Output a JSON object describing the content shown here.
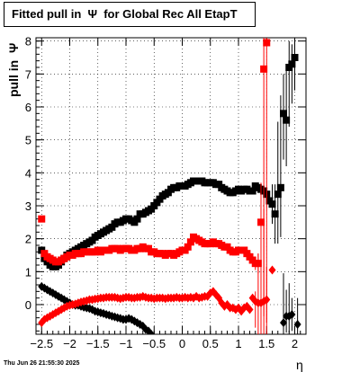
{
  "title": "Fitted pull in  Ψ  for Global Rec All EtapT",
  "footer": "Thu Jun 26 21:55:30 2025",
  "chart_data": {
    "type": "scatter",
    "title": "Fitted pull in  Ψ  for Global Rec All EtapT",
    "xlabel": "η",
    "ylabel": "pull in  Ψ",
    "xlim": [
      -2.6,
      2.2
    ],
    "ylim": [
      -0.9,
      8.1
    ],
    "xticks": [
      -2.5,
      -2,
      -1.5,
      -1,
      -0.5,
      0,
      0.5,
      1,
      1.5,
      2
    ],
    "xtick_labels": [
      "−2.5",
      "−2",
      "−1.5",
      "−1",
      "−0.5",
      "0",
      "0.5",
      "1",
      "1.5",
      "2"
    ],
    "yticks": [
      0,
      1,
      2,
      3,
      4,
      5,
      6,
      7,
      8
    ],
    "grid": true,
    "series": [
      {
        "marker": "square",
        "color": "#000000",
        "x": [
          -2.5,
          -2.45,
          -2.4,
          -2.35,
          -2.3,
          -2.25,
          -2.2,
          -2.15,
          -2.1,
          -2.05,
          -2.0,
          -1.95,
          -1.9,
          -1.85,
          -1.8,
          -1.75,
          -1.7,
          -1.65,
          -1.6,
          -1.55,
          -1.5,
          -1.45,
          -1.4,
          -1.35,
          -1.3,
          -1.25,
          -1.2,
          -1.15,
          -1.1,
          -1.05,
          -1.0,
          -0.95,
          -0.9,
          -0.85,
          -0.8,
          -0.75,
          -0.7,
          -0.65,
          -0.6,
          -0.55,
          -0.5,
          -0.45,
          -0.4,
          -0.35,
          -0.3,
          -0.25,
          -0.2,
          -0.15,
          -0.1,
          -0.05,
          0.0,
          0.05,
          0.1,
          0.15,
          0.2,
          0.25,
          0.3,
          0.35,
          0.4,
          0.45,
          0.5,
          0.55,
          0.6,
          0.65,
          0.7,
          0.75,
          0.8,
          0.85,
          0.9,
          0.95,
          1.0,
          1.05,
          1.1,
          1.15,
          1.2,
          1.25,
          1.3,
          1.35,
          1.4,
          1.45,
          1.5,
          1.55,
          1.6,
          1.65,
          1.7,
          1.75,
          1.8,
          1.85,
          1.9,
          1.95,
          2.0,
          2.05
        ],
        "y": [
          1.65,
          1.4,
          1.3,
          1.2,
          1.15,
          1.15,
          1.2,
          1.3,
          1.4,
          1.5,
          1.55,
          1.6,
          1.65,
          1.7,
          1.75,
          1.8,
          1.85,
          1.9,
          1.95,
          2.05,
          2.1,
          2.15,
          2.2,
          2.25,
          2.3,
          2.35,
          2.45,
          2.5,
          2.5,
          2.55,
          2.6,
          2.6,
          2.55,
          2.5,
          2.6,
          2.75,
          2.75,
          2.8,
          2.85,
          2.9,
          3.0,
          3.1,
          3.2,
          3.3,
          3.35,
          3.4,
          3.5,
          3.55,
          3.55,
          3.6,
          3.6,
          3.6,
          3.65,
          3.7,
          3.75,
          3.75,
          3.75,
          3.75,
          3.7,
          3.7,
          3.7,
          3.7,
          3.65,
          3.65,
          3.55,
          3.5,
          3.45,
          3.4,
          3.4,
          3.45,
          3.5,
          3.45,
          3.5,
          3.5,
          3.45,
          3.45,
          3.6,
          3.55,
          3.5,
          3.45,
          3.35,
          3.15,
          3.05,
          2.75,
          3.35,
          3.55,
          5.8,
          5.6,
          7.2,
          7.3,
          7.5,
          null
        ],
        "yerr_up": [
          0,
          0,
          0,
          0,
          0,
          0,
          0,
          0,
          0,
          0,
          0,
          0,
          0,
          0,
          0,
          0,
          0,
          0,
          0,
          0,
          0,
          0,
          0,
          0,
          0,
          0,
          0,
          0,
          0,
          0,
          0,
          0,
          0,
          0,
          0,
          0,
          0,
          0,
          0,
          0,
          0,
          0,
          0,
          0,
          0,
          0,
          0,
          0,
          0,
          0,
          0,
          0,
          0,
          0,
          0,
          0,
          0,
          0,
          0,
          0,
          0,
          0,
          0,
          0,
          0,
          0,
          0,
          0,
          0,
          0,
          0,
          0,
          0,
          0,
          0,
          0,
          0,
          0,
          0,
          0,
          0,
          0,
          0.6,
          0.9,
          2.2,
          2.8,
          1.2,
          1.6,
          0.8,
          0.6,
          0.5,
          0
        ],
        "yerr_dn": [
          0,
          0,
          0,
          0,
          0,
          0,
          0,
          0,
          0,
          0,
          0,
          0,
          0,
          0,
          0,
          0,
          0,
          0,
          0,
          0,
          0,
          0,
          0,
          0,
          0,
          0,
          0,
          0,
          0,
          0,
          0,
          0,
          0,
          0,
          0,
          0,
          0,
          0,
          0,
          0,
          0,
          0,
          0,
          0,
          0,
          0,
          0,
          0,
          0,
          0,
          0,
          0,
          0,
          0,
          0,
          0,
          0,
          0,
          0,
          0,
          0,
          0,
          0,
          0,
          0,
          0,
          0,
          0,
          0,
          0,
          0,
          0,
          0,
          0,
          0,
          0,
          0,
          0,
          0,
          0,
          0,
          0,
          0.6,
          0.9,
          1.5,
          1.5,
          1.4,
          1.4,
          1.8,
          1.2,
          1.0,
          0
        ]
      },
      {
        "marker": "square",
        "color": "#ff0000",
        "x": [
          -2.5,
          -2.45,
          -2.4,
          -2.35,
          -2.3,
          -2.25,
          -2.2,
          -2.15,
          -2.1,
          -2.05,
          -2.0,
          -1.95,
          -1.9,
          -1.85,
          -1.8,
          -1.75,
          -1.7,
          -1.65,
          -1.6,
          -1.55,
          -1.5,
          -1.45,
          -1.4,
          -1.35,
          -1.3,
          -1.25,
          -1.2,
          -1.15,
          -1.1,
          -1.05,
          -1.0,
          -0.95,
          -0.9,
          -0.85,
          -0.8,
          -0.75,
          -0.7,
          -0.65,
          -0.6,
          -0.55,
          -0.5,
          -0.45,
          -0.4,
          -0.35,
          -0.3,
          -0.25,
          -0.2,
          -0.15,
          -0.1,
          -0.05,
          0.0,
          0.05,
          0.1,
          0.15,
          0.2,
          0.25,
          0.3,
          0.35,
          0.4,
          0.45,
          0.5,
          0.55,
          0.6,
          0.65,
          0.7,
          0.75,
          0.8,
          0.85,
          0.9,
          0.95,
          1.0,
          1.05,
          1.1,
          1.15,
          1.2,
          1.25,
          1.3,
          1.35,
          1.4,
          1.45,
          1.5
        ],
        "y": [
          2.6,
          1.55,
          1.45,
          1.4,
          1.35,
          1.3,
          1.3,
          1.35,
          1.4,
          1.45,
          1.5,
          1.5,
          1.55,
          1.55,
          1.55,
          1.6,
          1.6,
          1.6,
          1.6,
          1.6,
          1.65,
          1.6,
          1.65,
          1.65,
          1.65,
          1.7,
          1.7,
          1.7,
          1.65,
          1.7,
          1.7,
          1.7,
          1.65,
          1.65,
          1.7,
          1.7,
          1.75,
          1.7,
          1.7,
          1.6,
          1.6,
          1.55,
          1.55,
          1.55,
          1.5,
          1.55,
          1.55,
          1.5,
          1.55,
          1.6,
          1.65,
          1.65,
          1.75,
          1.9,
          2.05,
          2.0,
          1.95,
          1.9,
          1.85,
          1.85,
          1.85,
          1.9,
          1.85,
          1.85,
          1.8,
          1.75,
          1.75,
          1.65,
          1.6,
          1.6,
          1.65,
          1.65,
          1.65,
          1.55,
          1.45,
          1.35,
          1.25,
          1.25,
          2.5,
          7.15,
          7.95
        ],
        "yerr_up": [
          0,
          0,
          0,
          0,
          0,
          0,
          0,
          0,
          0,
          0,
          0,
          0,
          0,
          0,
          0,
          0,
          0,
          0,
          0,
          0,
          0,
          0,
          0,
          0,
          0,
          0,
          0,
          0,
          0,
          0,
          0,
          0,
          0,
          0,
          0,
          0,
          0,
          0,
          0,
          0,
          0,
          0,
          0,
          0,
          0,
          0,
          0,
          0,
          0,
          0,
          0,
          0,
          0,
          0,
          0,
          0,
          0,
          0,
          0,
          0,
          0,
          0,
          0,
          0,
          0,
          0,
          0,
          0,
          0,
          0,
          0,
          0,
          0,
          0,
          0,
          0,
          0.2,
          0.3,
          1.2,
          1.2,
          0.5
        ],
        "yerr_dn": [
          0,
          0,
          0,
          0,
          0,
          0,
          0,
          0,
          0,
          0,
          0,
          0,
          0,
          0,
          0,
          0,
          0,
          0,
          0,
          0,
          0,
          0,
          0,
          0,
          0,
          0,
          0,
          0,
          0,
          0,
          0,
          0,
          0,
          0,
          0,
          0,
          0,
          0,
          0,
          0,
          0,
          0,
          0,
          0,
          0,
          0,
          0,
          0,
          0,
          0,
          0,
          0,
          0,
          0,
          0,
          0,
          0,
          0,
          0,
          0,
          0,
          0,
          0,
          0,
          0,
          0,
          0,
          0,
          0,
          0,
          0,
          0,
          0,
          0,
          0,
          0,
          0.2,
          0.3,
          2.8,
          7.5,
          8.5
        ]
      },
      {
        "marker": "diamond",
        "color": "#000000",
        "x": [
          -2.5,
          -2.45,
          -2.4,
          -2.35,
          -2.3,
          -2.25,
          -2.2,
          -2.15,
          -2.1,
          -2.05,
          -2.0,
          -1.95,
          -1.9,
          -1.85,
          -1.8,
          -1.75,
          -1.7,
          -1.65,
          -1.6,
          -1.55,
          -1.5,
          -1.45,
          -1.4,
          -1.35,
          -1.3,
          -1.25,
          -1.2,
          -1.15,
          -1.1,
          -1.05,
          -1.0,
          -0.95,
          -0.9,
          -0.85,
          -0.8,
          -0.75,
          -0.7,
          -0.65,
          -0.6,
          -0.55,
          1.8,
          1.85,
          1.9,
          1.95,
          2.05
        ],
        "y": [
          0.55,
          0.5,
          0.45,
          0.4,
          0.35,
          0.3,
          0.25,
          0.2,
          0.15,
          0.1,
          0.05,
          0.0,
          -0.02,
          -0.02,
          -0.05,
          -0.08,
          -0.1,
          -0.12,
          -0.15,
          -0.2,
          -0.22,
          -0.25,
          -0.27,
          -0.3,
          -0.32,
          -0.35,
          -0.37,
          -0.4,
          -0.42,
          -0.45,
          -0.45,
          -0.42,
          -0.45,
          -0.5,
          -0.55,
          -0.6,
          -0.65,
          -0.75,
          -0.8,
          -0.9,
          -0.55,
          -0.35,
          -0.35,
          -0.3,
          -0.6
        ],
        "yerr_up": [
          0,
          0,
          0,
          0,
          0,
          0,
          0,
          0,
          0,
          0,
          0,
          0,
          0,
          0,
          0,
          0,
          0,
          0,
          0,
          0,
          0,
          0,
          0,
          0,
          0,
          0,
          0,
          0,
          0,
          0,
          0,
          0,
          0,
          0,
          0,
          0,
          0,
          0,
          0,
          0,
          1.5,
          0.8,
          1.0,
          0.5,
          0.8
        ],
        "yerr_dn": [
          0,
          0,
          0,
          0,
          0,
          0,
          0,
          0,
          0,
          0,
          0,
          0,
          0,
          0,
          0,
          0,
          0,
          0,
          0,
          0,
          0,
          0,
          0,
          0,
          0,
          0,
          0,
          0,
          0,
          0,
          0,
          0,
          0,
          0,
          0,
          0,
          0,
          0,
          0,
          0,
          0.5,
          0.5,
          0.5,
          0.5,
          0.3
        ]
      },
      {
        "marker": "diamond",
        "color": "#ff0000",
        "x": [
          -2.5,
          -2.45,
          -2.4,
          -2.35,
          -2.3,
          -2.25,
          -2.2,
          -2.15,
          -2.1,
          -2.05,
          -2.0,
          -1.95,
          -1.9,
          -1.85,
          -1.8,
          -1.75,
          -1.7,
          -1.65,
          -1.6,
          -1.55,
          -1.5,
          -1.45,
          -1.4,
          -1.35,
          -1.3,
          -1.25,
          -1.2,
          -1.15,
          -1.1,
          -1.05,
          -1.0,
          -0.95,
          -0.9,
          -0.85,
          -0.8,
          -0.75,
          -0.7,
          -0.65,
          -0.6,
          -0.55,
          -0.5,
          -0.45,
          -0.4,
          -0.35,
          -0.3,
          -0.25,
          -0.2,
          -0.15,
          -0.1,
          -0.05,
          0.0,
          0.05,
          0.1,
          0.15,
          0.2,
          0.25,
          0.3,
          0.35,
          0.4,
          0.45,
          0.5,
          0.55,
          0.6,
          0.65,
          0.7,
          0.75,
          0.8,
          0.85,
          0.9,
          0.95,
          1.0,
          1.05,
          1.1,
          1.15,
          1.2,
          1.25,
          1.3,
          1.35,
          1.4,
          1.45,
          1.5,
          1.6
        ],
        "y": [
          -0.55,
          -0.45,
          -0.4,
          -0.35,
          -0.3,
          -0.25,
          -0.2,
          -0.15,
          -0.1,
          -0.05,
          -0.02,
          0.0,
          0.02,
          0.05,
          0.08,
          0.1,
          0.12,
          0.15,
          0.15,
          0.17,
          0.18,
          0.2,
          0.2,
          0.22,
          0.22,
          0.22,
          0.22,
          0.2,
          0.18,
          0.2,
          0.22,
          0.22,
          0.2,
          0.2,
          0.22,
          0.22,
          0.25,
          0.22,
          0.2,
          0.2,
          0.18,
          0.2,
          0.2,
          0.2,
          0.18,
          0.2,
          0.2,
          0.2,
          0.22,
          0.2,
          0.2,
          0.22,
          0.2,
          0.22,
          0.2,
          0.25,
          0.2,
          0.22,
          0.25,
          0.25,
          0.35,
          0.4,
          0.3,
          0.2,
          0.05,
          -0.05,
          0.0,
          -0.1,
          -0.1,
          -0.15,
          -0.1,
          -0.2,
          -0.1,
          -0.05,
          -0.15,
          0.2,
          0.1,
          0.05,
          0.05,
          0.1,
          0.15,
          1.05
        ],
        "yerr_up": [
          0,
          0,
          0,
          0,
          0,
          0,
          0,
          0,
          0,
          0,
          0,
          0,
          0,
          0,
          0,
          0,
          0,
          0,
          0,
          0,
          0,
          0,
          0,
          0,
          0,
          0,
          0,
          0,
          0,
          0,
          0,
          0,
          0,
          0,
          0,
          0,
          0,
          0,
          0,
          0,
          0,
          0,
          0,
          0,
          0,
          0,
          0,
          0,
          0,
          0,
          0,
          0,
          0,
          0,
          0,
          0,
          0,
          0,
          0,
          0,
          0,
          0,
          0,
          0,
          0,
          0,
          0,
          0,
          0,
          0,
          0,
          0,
          0,
          0,
          0,
          0,
          0.3,
          1.5,
          2.5,
          2.8,
          1.0,
          0
        ],
        "yerr_dn": [
          0,
          0,
          0,
          0,
          0,
          0,
          0,
          0,
          0,
          0,
          0,
          0,
          0,
          0,
          0,
          0,
          0,
          0,
          0,
          0,
          0,
          0,
          0,
          0,
          0,
          0,
          0,
          0,
          0,
          0,
          0,
          0,
          0,
          0,
          0,
          0,
          0,
          0,
          0,
          0,
          0,
          0,
          0,
          0,
          0,
          0,
          0,
          0,
          0,
          0,
          0,
          0,
          0,
          0,
          0,
          0,
          0,
          0,
          0,
          0,
          0,
          0,
          0,
          0,
          0,
          0,
          0,
          0,
          0,
          0,
          0,
          0,
          0,
          0,
          0,
          0,
          0.8,
          1.5,
          1.2,
          1.2,
          1.2,
          0
        ]
      }
    ]
  }
}
